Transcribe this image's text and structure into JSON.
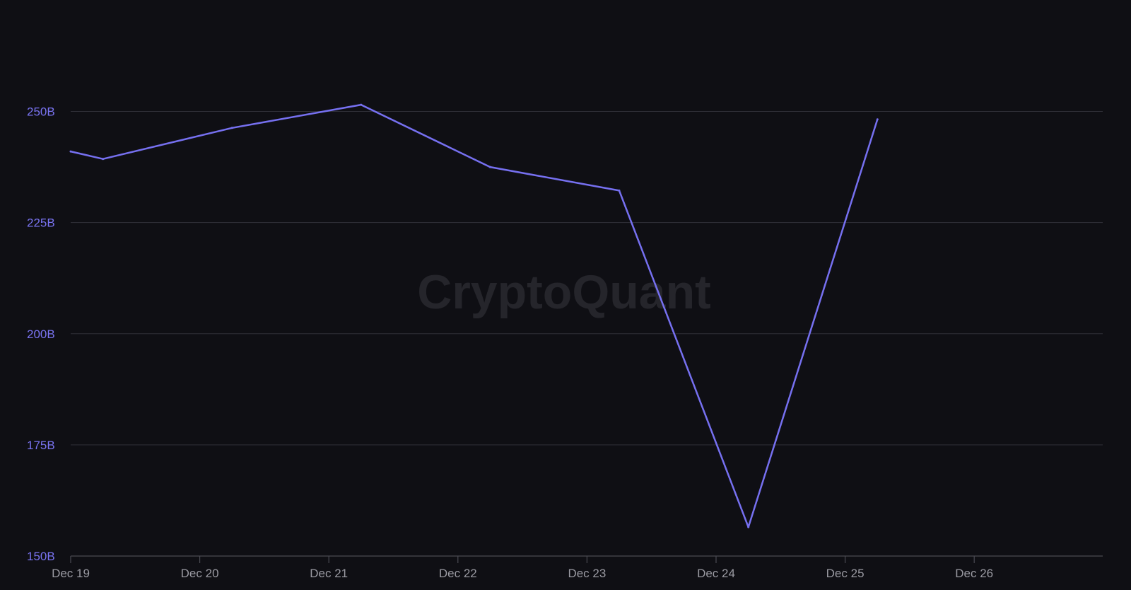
{
  "watermark": "CryptoQuant",
  "colors": {
    "background": "#0f0f14",
    "line": "#7670f0",
    "grid": "#303038",
    "axis": "#4a4a52",
    "y_tick_text": "#7a74f2",
    "x_tick_text": "#9a9aa2",
    "watermark": "#25252b"
  },
  "chart_data": {
    "type": "line",
    "title": "",
    "xlabel": "",
    "ylabel": "",
    "grid": true,
    "legend": "none",
    "ylim": [
      150,
      260
    ],
    "y_unit": "B",
    "y_ticks": [
      {
        "value": 150,
        "label": "150B"
      },
      {
        "value": 175,
        "label": "175B"
      },
      {
        "value": 200,
        "label": "200B"
      },
      {
        "value": 225,
        "label": "225B"
      },
      {
        "value": 250,
        "label": "250B"
      }
    ],
    "x_ticks": [
      "Dec 19",
      "Dec 20",
      "Dec 21",
      "Dec 22",
      "Dec 23",
      "Dec 24",
      "Dec 25",
      "Dec 26"
    ],
    "series": [
      {
        "x": [
          "Dec 19 00:00",
          "Dec 19 06:00",
          "Dec 20 06:00",
          "Dec 21 06:00",
          "Dec 22 06:00",
          "Dec 23 06:00",
          "Dec 24 06:00",
          "Dec 25 06:00"
        ],
        "values": [
          241,
          239.3,
          246.3,
          251.5,
          237.5,
          232.2,
          156.5,
          248.2
        ]
      }
    ]
  }
}
